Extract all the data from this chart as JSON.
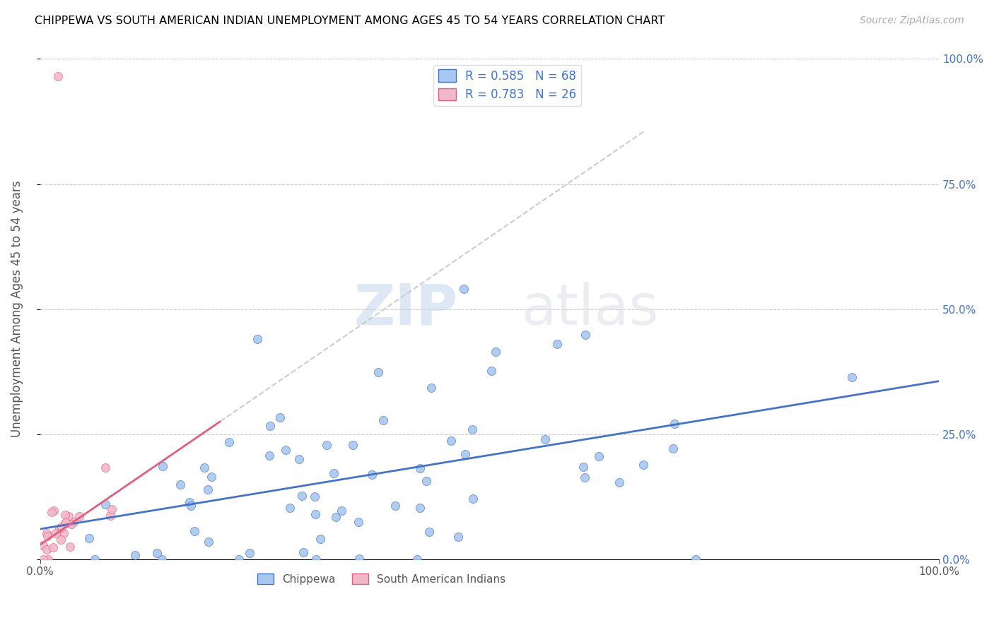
{
  "title": "CHIPPEWA VS SOUTH AMERICAN INDIAN UNEMPLOYMENT AMONG AGES 45 TO 54 YEARS CORRELATION CHART",
  "source": "Source: ZipAtlas.com",
  "ylabel": "Unemployment Among Ages 45 to 54 years",
  "xlim": [
    0,
    1.0
  ],
  "ylim": [
    0,
    1.0
  ],
  "xtick_labels": [
    "0.0%",
    "100.0%"
  ],
  "xtick_positions": [
    0.0,
    1.0
  ],
  "ytick_labels_right": [
    "0.0%",
    "25.0%",
    "50.0%",
    "75.0%",
    "100.0%"
  ],
  "ytick_positions_right": [
    0.0,
    0.25,
    0.5,
    0.75,
    1.0
  ],
  "chippewa_color": "#a8c8f0",
  "south_american_color": "#f0b8c8",
  "chippewa_line_color": "#4472c4",
  "south_american_line_color": "#e06080",
  "legend_label1": "R = 0.585   N = 68",
  "legend_label2": "R = 0.783   N = 26",
  "bottom_label1": "Chippewa",
  "bottom_label2": "South American Indians",
  "watermark_zip": "ZIP",
  "watermark_atlas": "atlas",
  "grid_color": "#cccccc"
}
